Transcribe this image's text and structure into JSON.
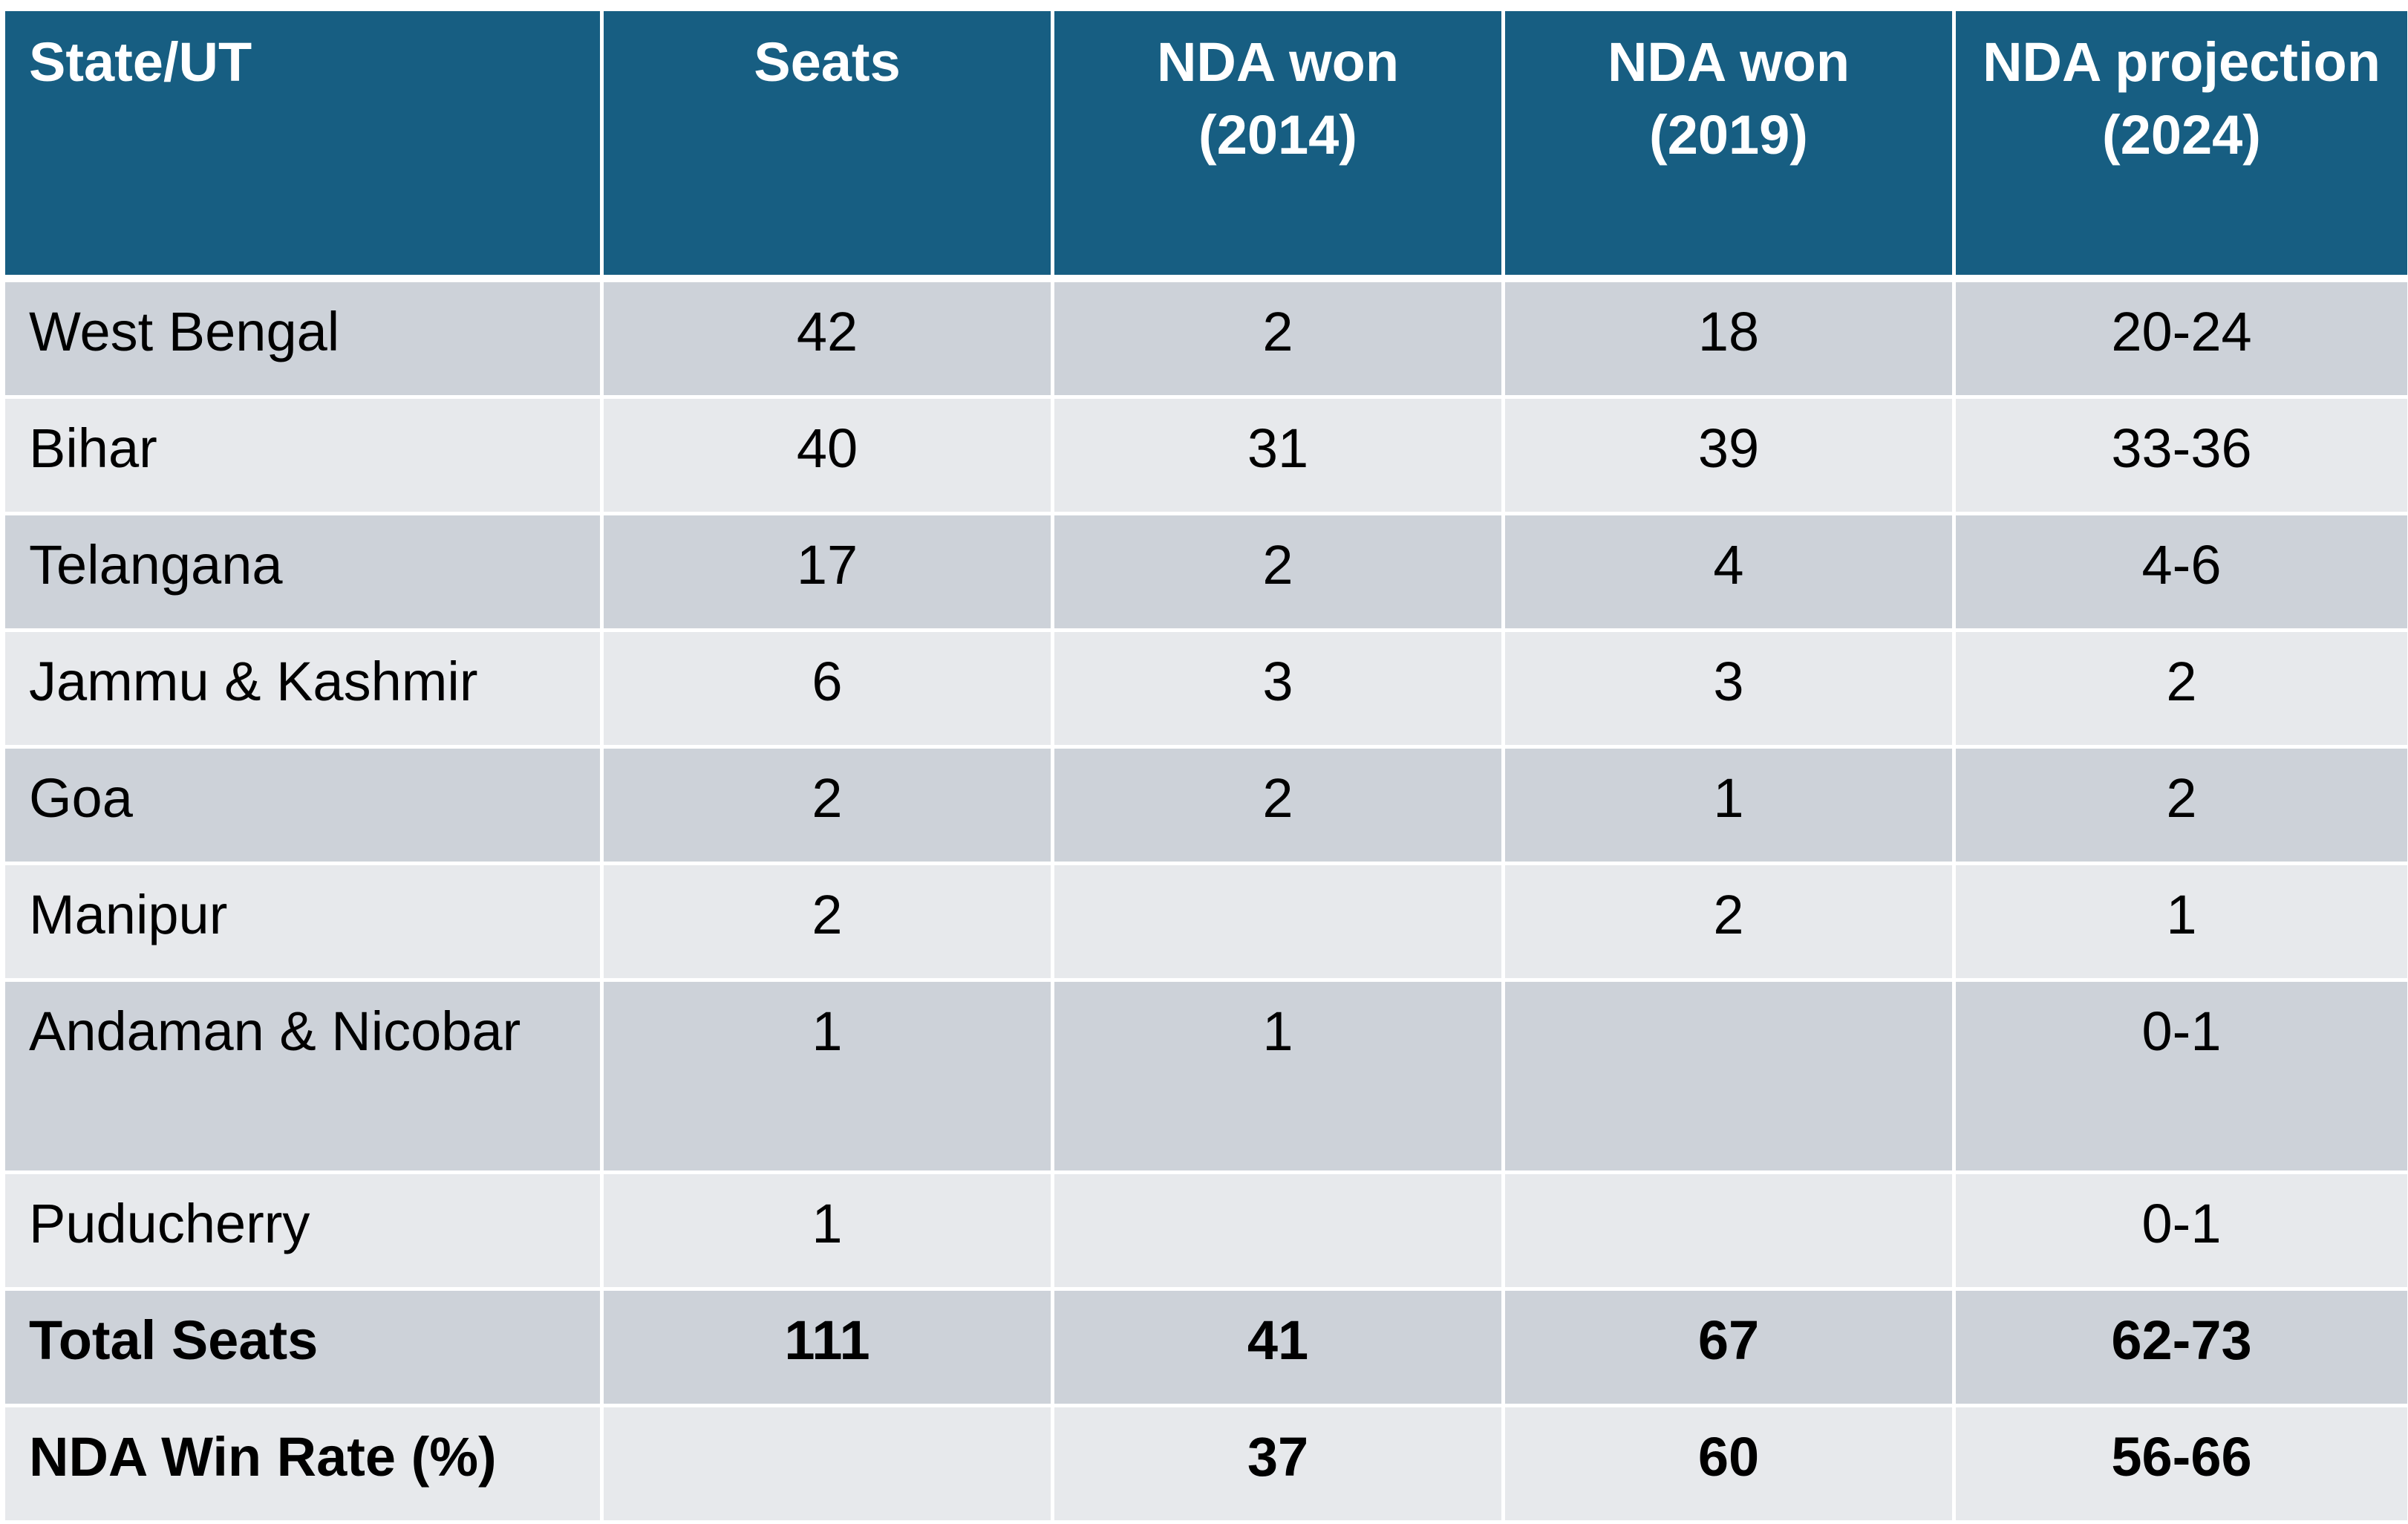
{
  "table": {
    "headers": [
      "State/UT",
      "Seats",
      "NDA won (2014)",
      "NDA won (2019)",
      "NDA projection (2024)"
    ],
    "rows": [
      [
        "West Bengal",
        "42",
        "2",
        "18",
        "20-24"
      ],
      [
        "Bihar",
        "40",
        "31",
        "39",
        "33-36"
      ],
      [
        "Telangana",
        "17",
        "2",
        "4",
        "4-6"
      ],
      [
        "Jammu & Kashmir",
        "6",
        "3",
        "3",
        "2"
      ],
      [
        "Goa",
        "2",
        "2",
        "1",
        "2"
      ],
      [
        "Manipur",
        "2",
        "",
        "2",
        "1"
      ],
      [
        "Andaman & Nicobar",
        "1",
        "1",
        "",
        "0-1"
      ],
      [
        "Puducherry",
        "1",
        "",
        "",
        "0-1"
      ],
      [
        "Total Seats",
        "111",
        "41",
        "67",
        "62-73"
      ],
      [
        "NDA Win Rate (%)",
        "",
        "37",
        "60",
        "56-66"
      ]
    ]
  },
  "colors": {
    "header_bg": "#175e82",
    "row_dark": "#cdd2d9",
    "row_light": "#e7e9ec",
    "border": "#ffffff"
  }
}
